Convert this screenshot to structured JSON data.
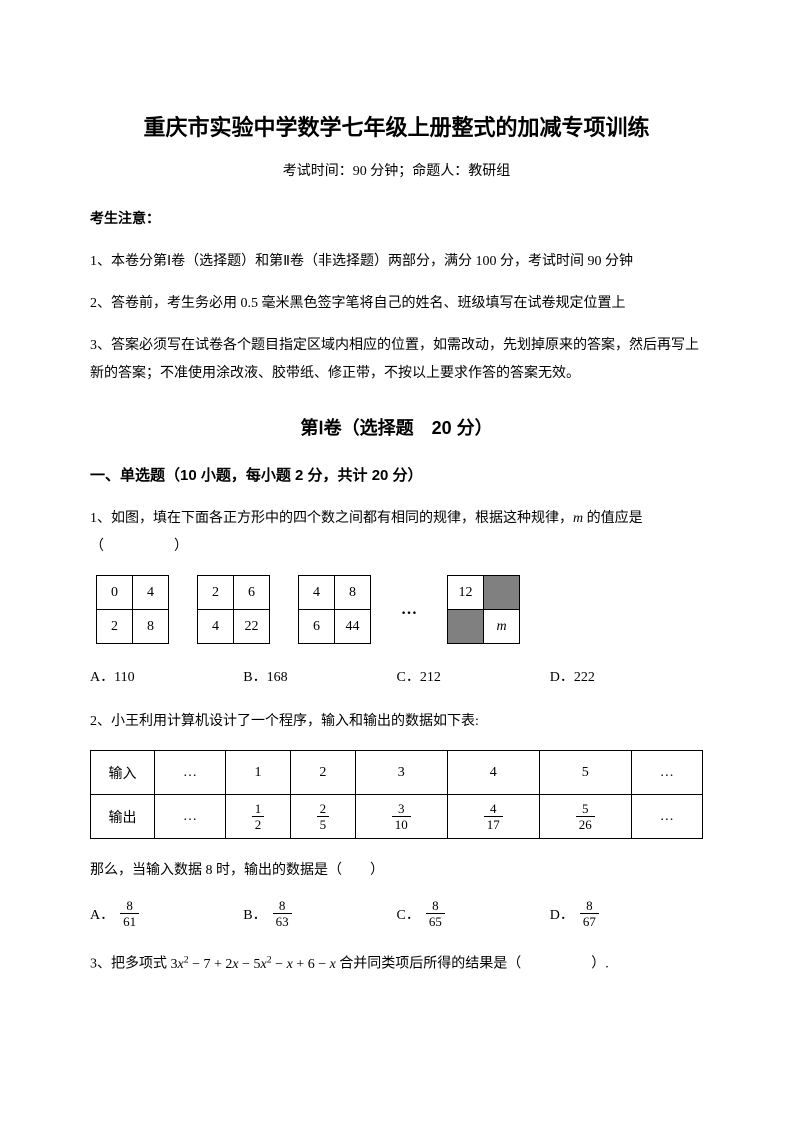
{
  "title": "重庆市实验中学数学七年级上册整式的加减专项训练",
  "subtitle": "考试时间：90 分钟；命题人：教研组",
  "notice_head": "考生注意：",
  "notices": [
    "1、本卷分第Ⅰ卷（选择题）和第Ⅱ卷（非选择题）两部分，满分 100 分，考试时间 90 分钟",
    "2、答卷前，考生务必用 0.5 毫米黑色签字笔将自己的姓名、班级填写在试卷规定位置上",
    "3、答案必须写在试卷各个题目指定区域内相应的位置，如需改动，先划掉原来的答案，然后再写上新的答案；不准使用涂改液、胶带纸、修正带，不按以上要求作答的答案无效。"
  ],
  "section1_head": "第Ⅰ卷（选择题　20 分）",
  "part_a_head": "一、单选题（10 小题，每小题 2 分，共计 20 分）",
  "q1": {
    "stem_a": "1、如图，填在下面各正方形中的四个数之间都有相同的规律，根据这种规律，",
    "stem_b": " 的值应是（　　　　　）",
    "m_label": "m",
    "grids": [
      {
        "cells": [
          [
            "0",
            "4"
          ],
          [
            "2",
            "8"
          ]
        ],
        "shade": []
      },
      {
        "cells": [
          [
            "2",
            "6"
          ],
          [
            "4",
            "22"
          ]
        ],
        "shade": []
      },
      {
        "cells": [
          [
            "4",
            "8"
          ],
          [
            "6",
            "44"
          ]
        ],
        "shade": []
      },
      {
        "cells": [
          [
            "12",
            ""
          ],
          [
            "",
            "m"
          ]
        ],
        "shade": [
          [
            0,
            1
          ],
          [
            1,
            0
          ]
        ],
        "m_cell": [
          1,
          1
        ]
      }
    ],
    "ellipsis": "…",
    "options": [
      "A．110",
      "B．168",
      "C．212",
      "D．222"
    ]
  },
  "q2": {
    "stem": "2、小王利用计算机设计了一个程序，输入和输出的数据如下表:",
    "row_labels": [
      "输入",
      "输出"
    ],
    "ellipsis": "…",
    "inputs": [
      "1",
      "2",
      "3",
      "4",
      "5"
    ],
    "outputs": [
      {
        "n": "1",
        "d": "2"
      },
      {
        "n": "2",
        "d": "5"
      },
      {
        "n": "3",
        "d": "10"
      },
      {
        "n": "4",
        "d": "17"
      },
      {
        "n": "5",
        "d": "26"
      }
    ],
    "tail": "那么，当输入数据 8 时，输出的数据是（　　）",
    "options": [
      {
        "label": "A．",
        "n": "8",
        "d": "61"
      },
      {
        "label": "B．",
        "n": "8",
        "d": "63"
      },
      {
        "label": "C．",
        "n": "8",
        "d": "65"
      },
      {
        "label": "D．",
        "n": "8",
        "d": "67"
      }
    ]
  },
  "q3": {
    "prefix": "3、把多项式 ",
    "expr": "3x² − 7 + 2x − 5x² − x + 6 − x",
    "suffix": " 合并同类项后所得的结果是（　　　　　）."
  },
  "colors": {
    "text": "#000000",
    "bg": "#ffffff",
    "shade": "#808080",
    "border": "#000000"
  }
}
